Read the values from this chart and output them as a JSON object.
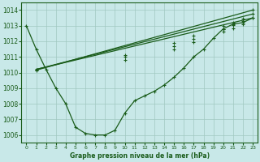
{
  "bg_color": "#c8e8e8",
  "line_color": "#1a5c1a",
  "grid_color": "#a0c8c0",
  "ylim": [
    1005.5,
    1014.5
  ],
  "xlim": [
    -0.5,
    23.5
  ],
  "yticks": [
    1006,
    1007,
    1008,
    1009,
    1010,
    1011,
    1012,
    1013,
    1014
  ],
  "xticks": [
    0,
    1,
    2,
    3,
    4,
    5,
    6,
    7,
    8,
    9,
    10,
    11,
    12,
    13,
    14,
    15,
    16,
    17,
    18,
    19,
    20,
    21,
    22,
    23
  ],
  "xlabel": "Graphe pression niveau de la mer (hPa)",
  "curve_main_x": [
    0,
    1,
    2,
    3,
    4,
    5,
    6,
    7,
    8,
    9,
    10,
    11,
    12,
    13,
    14,
    15,
    16,
    17,
    18,
    19,
    20,
    21,
    22,
    23
  ],
  "curve_main_y": [
    1013.0,
    1011.5,
    1010.2,
    1009.0,
    1008.0,
    1006.5,
    1006.1,
    1006.0,
    1006.0,
    1006.3,
    1007.4,
    1008.2,
    1008.5,
    1008.8,
    1009.2,
    1009.7,
    1010.3,
    1011.0,
    1011.5,
    1012.2,
    1012.8,
    1013.1,
    1013.2,
    1013.5
  ],
  "line1_x": [
    1,
    23
  ],
  "line1_y": [
    1010.2,
    1013.5
  ],
  "line2_x": [
    1,
    23
  ],
  "line2_y": [
    1010.2,
    1013.75
  ],
  "line3_x": [
    1,
    23
  ],
  "line3_y": [
    1010.15,
    1014.0
  ],
  "line1_markers_x": [
    1,
    10,
    15,
    17,
    20,
    21,
    22,
    23
  ],
  "line1_markers_y": [
    1010.2,
    1010.8,
    1011.5,
    1011.95,
    1012.6,
    1012.85,
    1013.1,
    1013.5
  ],
  "line2_markers_x": [
    1,
    10,
    15,
    17,
    20,
    21,
    22,
    23
  ],
  "line2_markers_y": [
    1010.2,
    1011.0,
    1011.7,
    1012.15,
    1012.8,
    1013.05,
    1013.3,
    1013.75
  ],
  "line3_markers_x": [
    1,
    10,
    15,
    17,
    20,
    21,
    22,
    23
  ],
  "line3_markers_y": [
    1010.15,
    1011.1,
    1011.9,
    1012.35,
    1013.0,
    1013.2,
    1013.45,
    1014.0
  ]
}
